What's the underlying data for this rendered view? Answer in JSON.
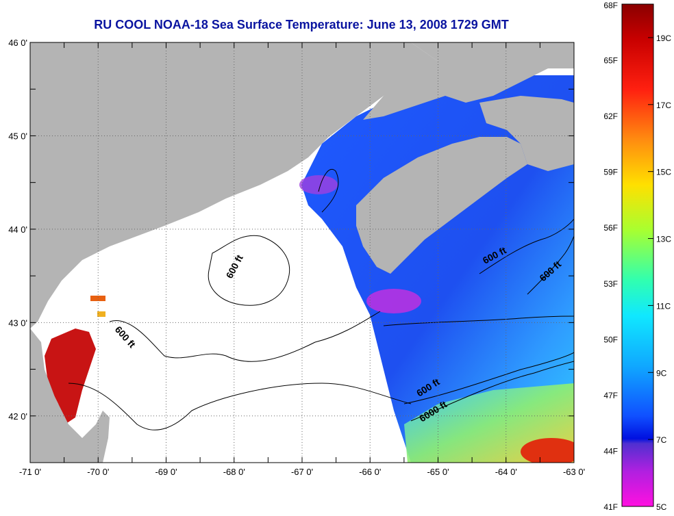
{
  "title": "RU COOL  NOAA-18  Sea Surface Temperature:  June 13, 2008 1729 GMT",
  "map": {
    "lon_range": [
      -71,
      -63
    ],
    "lat_range": [
      41.5,
      46
    ],
    "lon_ticks": [
      "-71 0'",
      "-70 0'",
      "-69 0'",
      "-68 0'",
      "-67 0'",
      "-66 0'",
      "-65 0'",
      "-64 0'",
      "-63 0'"
    ],
    "lat_ticks": [
      "46 0'",
      "45 0'",
      "44 0'",
      "43 0'",
      "42 0'"
    ],
    "contour_labels": [
      "600 ft",
      "600 ft",
      "600 ft",
      "600 ft",
      "6000 ft"
    ],
    "colors": {
      "land": "#b4b4b4",
      "cloud": "#ffffff",
      "contour": "#000000",
      "title": "#0a14a0"
    }
  },
  "colorbar": {
    "fahrenheit_labels": [
      "68F",
      "65F",
      "62F",
      "59F",
      "56F",
      "53F",
      "50F",
      "47F",
      "44F",
      "41F"
    ],
    "celsius_labels": [
      "19C",
      "17C",
      "15C",
      "13C",
      "11C",
      "9C",
      "7C",
      "5C"
    ],
    "range_F": [
      41,
      68
    ],
    "range_C": [
      5,
      20
    ]
  }
}
